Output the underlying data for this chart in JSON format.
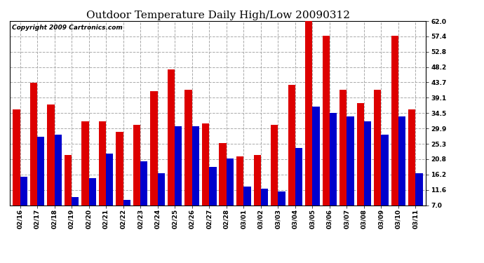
{
  "title": "Outdoor Temperature Daily High/Low 20090312",
  "copyright": "Copyright 2009 Cartronics.com",
  "dates": [
    "02/16",
    "02/17",
    "02/18",
    "02/19",
    "02/20",
    "02/21",
    "02/22",
    "02/23",
    "02/24",
    "02/25",
    "02/26",
    "02/27",
    "02/28",
    "03/01",
    "03/02",
    "03/03",
    "03/04",
    "03/05",
    "03/06",
    "03/07",
    "03/08",
    "03/09",
    "03/10",
    "03/11"
  ],
  "highs": [
    35.5,
    43.5,
    37.0,
    22.0,
    32.0,
    32.0,
    29.0,
    31.0,
    41.0,
    47.5,
    41.5,
    31.5,
    25.5,
    21.5,
    22.0,
    31.0,
    43.0,
    62.0,
    57.5,
    41.5,
    37.5,
    41.5,
    57.5,
    35.5
  ],
  "lows": [
    15.5,
    27.5,
    28.0,
    9.5,
    15.0,
    22.5,
    8.5,
    20.0,
    16.5,
    30.5,
    30.5,
    18.5,
    21.0,
    12.5,
    12.0,
    11.0,
    24.0,
    36.5,
    34.5,
    33.5,
    32.0,
    28.0,
    33.5,
    16.5
  ],
  "high_color": "#dd0000",
  "low_color": "#0000cc",
  "bg_color": "#ffffff",
  "grid_color": "#aaaaaa",
  "yticks": [
    7.0,
    11.6,
    16.2,
    20.8,
    25.3,
    29.9,
    34.5,
    39.1,
    43.7,
    48.2,
    52.8,
    57.4,
    62.0
  ],
  "ymin": 7.0,
  "ymax": 62.0,
  "title_fontsize": 11,
  "copyright_fontsize": 6.5,
  "tick_fontsize": 6.5,
  "bar_width": 0.42
}
